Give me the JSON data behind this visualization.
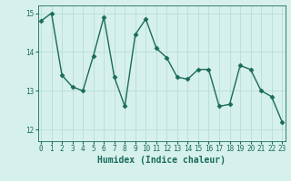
{
  "x": [
    0,
    1,
    2,
    3,
    4,
    5,
    6,
    7,
    8,
    9,
    10,
    11,
    12,
    13,
    14,
    15,
    16,
    17,
    18,
    19,
    20,
    21,
    22,
    23
  ],
  "y": [
    14.8,
    15.0,
    13.4,
    13.1,
    13.0,
    13.9,
    14.9,
    13.35,
    12.6,
    14.45,
    14.85,
    14.1,
    13.85,
    13.35,
    13.3,
    13.55,
    13.55,
    12.6,
    12.65,
    13.65,
    13.55,
    13.0,
    12.85,
    12.2
  ],
  "line_color": "#1a6b5a",
  "marker": "D",
  "markersize": 2.5,
  "linewidth": 1.0,
  "bg_color": "#d6f0ec",
  "grid_color": "#b8ddd8",
  "xlabel": "Humidex (Indice chaleur)",
  "ylim": [
    11.7,
    15.2
  ],
  "xlim": [
    -0.3,
    23.3
  ],
  "yticks": [
    12,
    13,
    14,
    15
  ],
  "xticks": [
    0,
    1,
    2,
    3,
    4,
    5,
    6,
    7,
    8,
    9,
    10,
    11,
    12,
    13,
    14,
    15,
    16,
    17,
    18,
    19,
    20,
    21,
    22,
    23
  ],
  "tick_fontsize": 5.5,
  "xlabel_fontsize": 7.0
}
